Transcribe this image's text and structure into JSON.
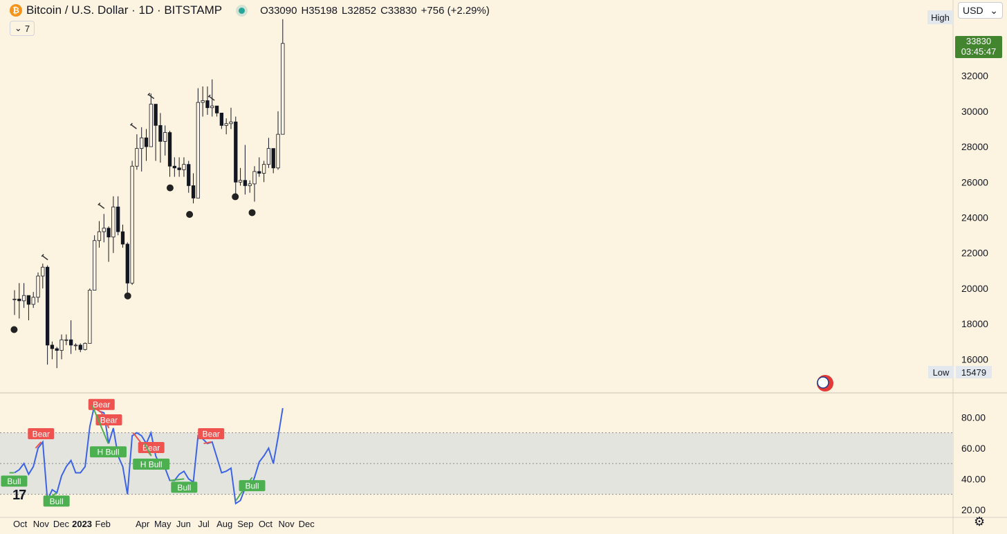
{
  "header": {
    "title": "Bitcoin / U.S. Dollar · 1D · BITSTAMP",
    "open": "O33090",
    "high": "H35198",
    "low": "L32852",
    "close": "C33830",
    "change": "+756 (+2.29%)",
    "indicators_toggle": "7"
  },
  "currency": "USD",
  "high_label": "High",
  "low_label": "Low",
  "low_value": "15479",
  "last_price": {
    "price": "33830",
    "countdown": "03:45:47"
  },
  "colors": {
    "background": "#fdf3e1",
    "rsi_line": "#3b63e6",
    "bull": "#4caf50",
    "bear": "#ef5350",
    "last_price": "#43852f",
    "candles": "#131722"
  },
  "chart_data": [
    {
      "type": "candlestick",
      "title": "Bitcoin / U.S. Dollar · 1D · BITSTAMP",
      "ylim": [
        15000,
        35500
      ],
      "y_ticks": [
        16000,
        18000,
        20000,
        22000,
        24000,
        26000,
        28000,
        30000,
        32000
      ],
      "x_ticks": [
        "Oct",
        "Nov",
        "Dec",
        "2023",
        "Feb",
        "Apr",
        "May",
        "Jun",
        "Jul",
        "Aug",
        "Sep",
        "Oct",
        "Nov",
        "Dec"
      ],
      "series": [
        {
          "x": [
            "2022-09-19",
            "2022-09-26",
            "2022-10-03",
            "2022-10-10",
            "2022-10-17",
            "2022-10-24",
            "2022-10-31",
            "2022-11-07",
            "2022-11-14",
            "2022-11-21",
            "2022-11-28",
            "2022-12-05",
            "2022-12-12",
            "2022-12-19",
            "2022-12-26",
            "2023-01-02",
            "2023-01-09",
            "2023-01-16",
            "2023-01-23",
            "2023-01-30",
            "2023-02-06",
            "2023-02-13",
            "2023-02-20",
            "2023-02-27",
            "2023-03-06",
            "2023-03-13",
            "2023-03-20",
            "2023-03-27",
            "2023-04-03",
            "2023-04-10",
            "2023-04-17",
            "2023-04-24",
            "2023-05-01",
            "2023-05-08",
            "2023-05-15",
            "2023-05-22",
            "2023-05-29",
            "2023-06-05",
            "2023-06-12",
            "2023-06-19",
            "2023-06-26",
            "2023-07-03",
            "2023-07-10",
            "2023-07-17",
            "2023-07-24",
            "2023-07-31",
            "2023-08-07",
            "2023-08-14",
            "2023-08-21",
            "2023-08-28",
            "2023-09-04",
            "2023-09-11",
            "2023-09-18",
            "2023-09-25",
            "2023-10-02",
            "2023-10-09",
            "2023-10-16",
            "2023-10-23"
          ],
          "close": [
            19400,
            19300,
            19600,
            19100,
            19500,
            20700,
            21200,
            16800,
            16600,
            16500,
            17100,
            17100,
            16800,
            16800,
            16550,
            16900,
            19900,
            22700,
            23200,
            23400,
            22900,
            24600,
            23200,
            22500,
            20300,
            26900,
            27900,
            28500,
            28000,
            30400,
            29200,
            28300,
            28800,
            26900,
            26800,
            26700,
            27000,
            25800,
            25100,
            30500,
            30600,
            30200,
            30300,
            29900,
            29200,
            29300,
            29400,
            26000,
            26100,
            25800,
            25900,
            26600,
            26500,
            27000,
            27900,
            26800,
            28700,
            33830
          ],
          "high": [
            19900,
            20300,
            20300,
            19600,
            19800,
            20900,
            21400,
            21300,
            17000,
            16700,
            17400,
            17400,
            18200,
            16900,
            16900,
            16950,
            20000,
            23000,
            23800,
            24200,
            23500,
            25200,
            25200,
            23600,
            22600,
            27200,
            28700,
            29100,
            29000,
            31000,
            30400,
            29900,
            29200,
            28900,
            27400,
            27400,
            27400,
            27200,
            26500,
            31300,
            31400,
            31400,
            31800,
            30300,
            29900,
            29600,
            30200,
            29700,
            26800,
            28100,
            26100,
            26900,
            27400,
            27200,
            28500,
            27400,
            30000,
            35198
          ],
          "low": [
            18500,
            18300,
            18900,
            18200,
            18900,
            19200,
            20000,
            15700,
            16000,
            15500,
            16000,
            16800,
            16300,
            16500,
            16400,
            16500,
            17200,
            20400,
            22300,
            22600,
            21500,
            22000,
            23000,
            22300,
            19600,
            20200,
            26700,
            26600,
            27200,
            28000,
            27200,
            27100,
            27500,
            26300,
            26300,
            26300,
            26300,
            25400,
            24800,
            26100,
            29700,
            29800,
            29700,
            29700,
            29000,
            28700,
            29000,
            25200,
            25800,
            25300,
            25400,
            24900,
            26300,
            26000,
            26800,
            26500,
            26700,
            29800
          ],
          "patterns": [
            {
              "x": "2022-09-22",
              "kind": "bomb",
              "at": "low"
            },
            {
              "x": "2022-11-07",
              "kind": "hammer",
              "at": "high"
            },
            {
              "x": "2023-01-30",
              "kind": "hammer",
              "at": "high"
            },
            {
              "x": "2023-03-10",
              "kind": "bomb",
              "at": "low"
            },
            {
              "x": "2023-03-19",
              "kind": "hammer",
              "at": "high"
            },
            {
              "x": "2023-04-14",
              "kind": "hammer",
              "at": "high"
            },
            {
              "x": "2023-05-12",
              "kind": "bomb",
              "at": "low"
            },
            {
              "x": "2023-06-10",
              "kind": "bomb",
              "at": "low"
            },
            {
              "x": "2023-07-13",
              "kind": "hammer",
              "at": "high"
            },
            {
              "x": "2023-08-17",
              "kind": "bomb",
              "at": "low"
            },
            {
              "x": "2023-09-11",
              "kind": "bomb",
              "at": "low"
            }
          ]
        }
      ]
    },
    {
      "type": "line",
      "ylim": [
        15,
        95
      ],
      "y_ticks": [
        20,
        40,
        60,
        80
      ],
      "bands": {
        "upper": 70,
        "middle": 50,
        "lower": 30
      },
      "series": [
        {
          "x": [
            "2022-09-19",
            "2022-09-26",
            "2022-10-03",
            "2022-10-10",
            "2022-10-17",
            "2022-10-24",
            "2022-10-31",
            "2022-11-07",
            "2022-11-14",
            "2022-11-21",
            "2022-11-28",
            "2022-12-05",
            "2022-12-12",
            "2022-12-19",
            "2022-12-26",
            "2023-01-02",
            "2023-01-09",
            "2023-01-16",
            "2023-01-23",
            "2023-01-30",
            "2023-02-06",
            "2023-02-13",
            "2023-02-20",
            "2023-02-27",
            "2023-03-06",
            "2023-03-13",
            "2023-03-20",
            "2023-03-27",
            "2023-04-03",
            "2023-04-10",
            "2023-04-17",
            "2023-04-24",
            "2023-05-01",
            "2023-05-08",
            "2023-05-15",
            "2023-05-22",
            "2023-05-29",
            "2023-06-05",
            "2023-06-12",
            "2023-06-19",
            "2023-06-26",
            "2023-07-03",
            "2023-07-10",
            "2023-07-17",
            "2023-07-24",
            "2023-07-31",
            "2023-08-07",
            "2023-08-14",
            "2023-08-21",
            "2023-08-28",
            "2023-09-04",
            "2023-09-11",
            "2023-09-18",
            "2023-09-25",
            "2023-10-02",
            "2023-10-09",
            "2023-10-16",
            "2023-10-23"
          ],
          "values": [
            44,
            46,
            50,
            43,
            48,
            60,
            64,
            26,
            33,
            31,
            42,
            48,
            52,
            44,
            44,
            48,
            74,
            88,
            84,
            83,
            63,
            73,
            55,
            48,
            30,
            68,
            70,
            68,
            63,
            70,
            55,
            48,
            47,
            39,
            39,
            43,
            45,
            40,
            38,
            68,
            66,
            63,
            64,
            54,
            44,
            45,
            47,
            24,
            26,
            34,
            33,
            41,
            51,
            55,
            60,
            50,
            67,
            86
          ]
        }
      ],
      "divergences": [
        {
          "from": "2022-10-24",
          "to": "2022-11-01",
          "label": "Bear",
          "kind": "bear"
        },
        {
          "from": "2022-11-09",
          "to": "2022-11-24",
          "label": "Bull",
          "kind": "bull"
        },
        {
          "from": "2023-01-14",
          "to": "2023-01-30",
          "label": "Bear",
          "kind": "bear"
        },
        {
          "from": "2023-01-30",
          "to": "2023-02-10",
          "label": "Bear",
          "kind": "bear"
        },
        {
          "from": "2023-01-16",
          "to": "2023-02-09",
          "label": "H Bull",
          "kind": "hidden-bull"
        },
        {
          "from": "2023-03-18",
          "to": "2023-04-14",
          "label": "Bear",
          "kind": "bear"
        },
        {
          "from": "2023-04-04",
          "to": "2023-04-14",
          "label": "H Bull",
          "kind": "hidden-bull"
        },
        {
          "from": "2023-05-12",
          "to": "2023-06-02",
          "label": "Bull",
          "kind": "bull"
        },
        {
          "from": "2023-07-01",
          "to": "2023-07-12",
          "label": "Bear",
          "kind": "bear"
        },
        {
          "from": "2023-08-18",
          "to": "2023-09-11",
          "label": "Bull",
          "kind": "bull"
        },
        {
          "from": "2022-09-15",
          "to": "2022-09-22",
          "label": "Bull",
          "kind": "bull"
        }
      ]
    }
  ]
}
